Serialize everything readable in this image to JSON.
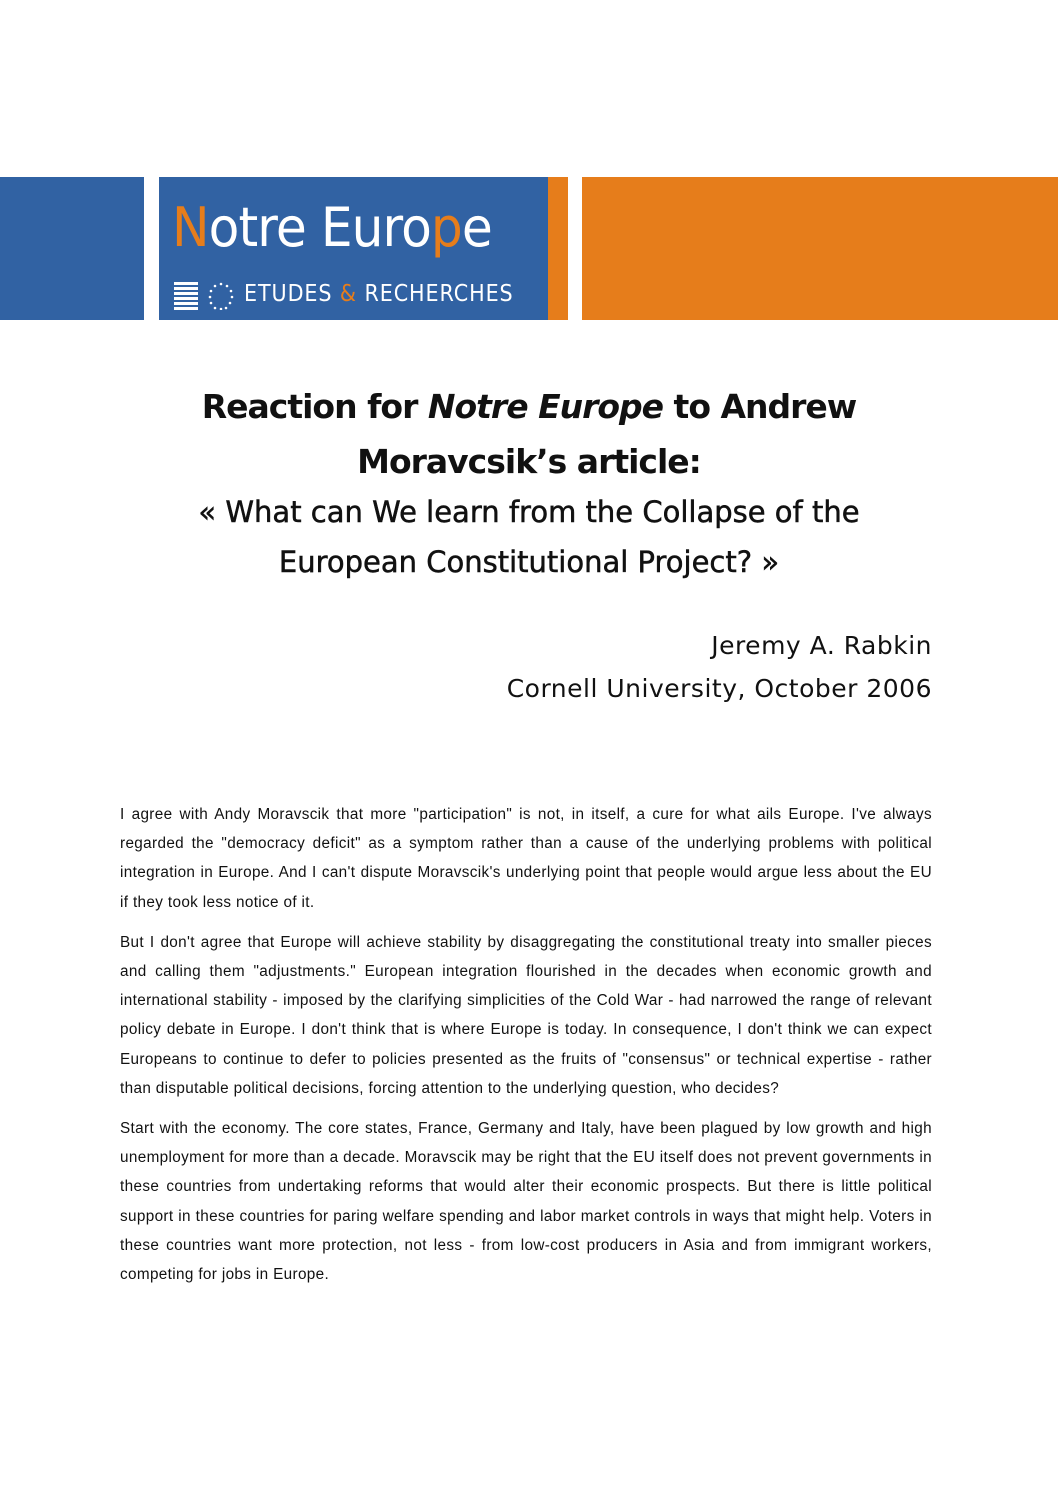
{
  "header": {
    "logo_text": "Notre Europe",
    "logo_subtitle_1": "ETUDES",
    "logo_subtitle_amp": "&",
    "logo_subtitle_2": "RECHERCHES",
    "colors": {
      "blue": "#3162a3",
      "orange": "#e67d1b"
    }
  },
  "title": {
    "line1_a": "Reaction for ",
    "line1_em": "Notre Europe",
    "line1_b": " to Andrew",
    "line2": "Moravcsik’s article:",
    "line3": "« What can We learn from the Collapse of the",
    "line4": "European Constitutional Project? »"
  },
  "author": {
    "name": "Jeremy A. Rabkin",
    "affiliation": "Cornell University, October 2006"
  },
  "body": {
    "paragraphs": [
      "I agree with Andy Moravscik that more \"participation\" is not, in itself, a cure for what ails Europe. I've always regarded the \"democracy deficit\" as a symptom rather than a cause of the underlying problems with political integration in Europe.  And I can't dispute Moravscik's underlying point that people would argue less about the EU if they took less notice of it.",
      "But I don't agree that Europe will achieve stability by disaggregating the constitutional treaty into smaller pieces and calling them \"adjustments.\"  European integration flourished in the decades when economic growth and international stability - imposed by the clarifying simplicities of the Cold War - had narrowed the range of relevant policy debate in Europe.  I don't think that is where Europe is today.  In consequence, I don't think we can expect Europeans to continue to defer to policies presented as the fruits of \"consensus\" or technical expertise - rather than disputable political decisions, forcing attention to the underlying question, who decides?",
      "Start with the economy.  The core states, France, Germany and Italy, have been plagued by low growth and high unemployment for more than a decade.  Moravscik may be right that the EU itself does not prevent governments in these countries from undertaking reforms that would alter their economic prospects.  But there is little political support in these countries for paring welfare spending and labor market controls in ways that might help.  Voters in these countries want more protection, not less - from low-cost producers in Asia and from immigrant workers, competing for jobs in Europe."
    ]
  }
}
